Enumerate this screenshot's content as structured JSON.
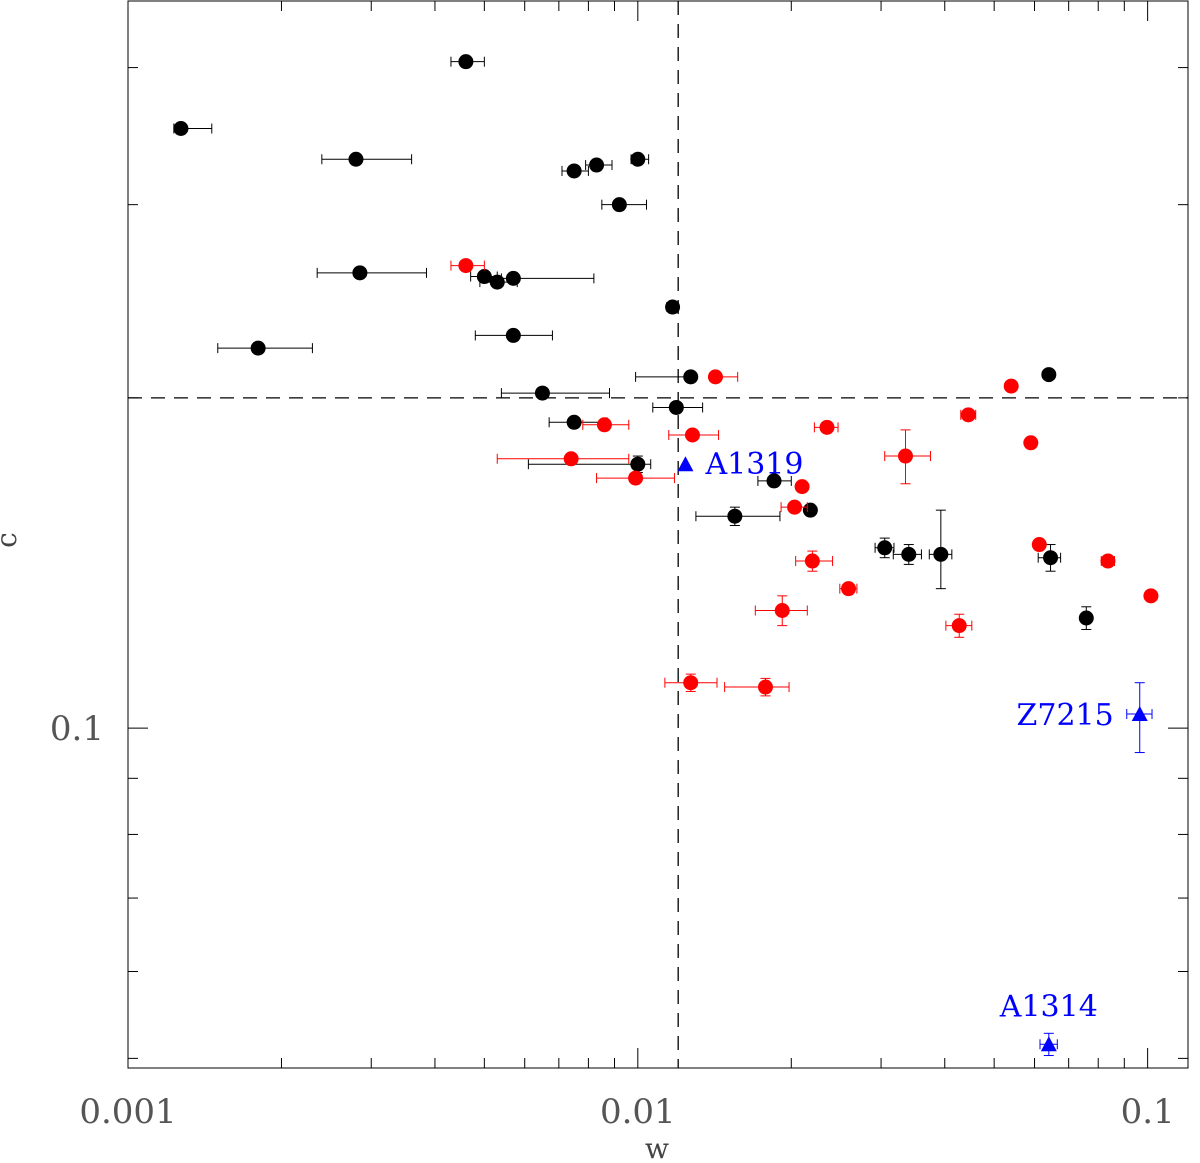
{
  "chart_data": {
    "type": "scatter",
    "title": "",
    "xlabel": "w",
    "ylabel": "c",
    "xscale": "log",
    "yscale": "log",
    "xlim": [
      0.001,
      0.12
    ],
    "ylim": [
      0.049,
      0.46
    ],
    "x_major_ticks": [
      {
        "value": 0.001,
        "label": "0.001"
      },
      {
        "value": 0.01,
        "label": "0.01"
      },
      {
        "value": 0.1,
        "label": "0.1"
      }
    ],
    "y_major_ticks": [
      {
        "value": 0.1,
        "label": "0.1"
      }
    ],
    "reference_lines": {
      "x": 0.012,
      "y": 0.2
    },
    "colors": {
      "black_series": "#000000",
      "red_series": "#ff0000",
      "blue_series": "#0000ff",
      "axis": "#000000"
    },
    "series": [
      {
        "name": "black",
        "marker": "circle",
        "color": "#000000",
        "points": [
          {
            "x": 0.00127,
            "y": 0.352,
            "xerr": [
              4e-05,
              0.00019
            ],
            "yerr": [
              0.0,
              0.0
            ]
          },
          {
            "x": 0.0046,
            "y": 0.405,
            "xerr": [
              0.0003,
              0.0004
            ],
            "yerr": [
              0.0,
              0.0
            ]
          },
          {
            "x": 0.0028,
            "y": 0.33,
            "xerr": [
              0.0004,
              0.0008
            ],
            "yerr": [
              0.0,
              0.0
            ]
          },
          {
            "x": 0.0075,
            "y": 0.322,
            "xerr": [
              0.0004,
              0.0005
            ],
            "yerr": [
              0.0,
              0.0
            ]
          },
          {
            "x": 0.0083,
            "y": 0.326,
            "xerr": [
              0.0004,
              0.0006
            ],
            "yerr": [
              0.0,
              0.0
            ]
          },
          {
            "x": 0.01,
            "y": 0.33,
            "xerr": [
              0.0003,
              0.0005
            ],
            "yerr": [
              0.0,
              0.0
            ]
          },
          {
            "x": 0.0092,
            "y": 0.3,
            "xerr": [
              0.0007,
              0.0012
            ],
            "yerr": [
              0.0,
              0.0
            ]
          },
          {
            "x": 0.00285,
            "y": 0.26,
            "xerr": [
              0.0005,
              0.001
            ],
            "yerr": [
              0.0,
              0.0
            ]
          },
          {
            "x": 0.005,
            "y": 0.258,
            "xerr": [
              0.0003,
              0.0003
            ],
            "yerr": [
              0.0,
              0.0
            ]
          },
          {
            "x": 0.0053,
            "y": 0.255,
            "xerr": [
              0.0004,
              0.0005
            ],
            "yerr": [
              0.0,
              0.0
            ]
          },
          {
            "x": 0.0057,
            "y": 0.257,
            "xerr": [
              0.0003,
              0.0025
            ],
            "yerr": [
              0.0,
              0.0
            ]
          },
          {
            "x": 0.0117,
            "y": 0.242,
            "xerr": [
              0.0003,
              0.0003
            ],
            "yerr": [
              0.0,
              0.0
            ]
          },
          {
            "x": 0.0057,
            "y": 0.228,
            "xerr": [
              0.0009,
              0.0011
            ],
            "yerr": [
              0.0,
              0.0
            ]
          },
          {
            "x": 0.0018,
            "y": 0.222,
            "xerr": [
              0.0003,
              0.0005
            ],
            "yerr": [
              0.0,
              0.0
            ]
          },
          {
            "x": 0.0127,
            "y": 0.209,
            "xerr": [
              0.0028,
              0.0003
            ],
            "yerr": [
              0.002,
              0.002
            ]
          },
          {
            "x": 0.064,
            "y": 0.21,
            "xerr": [
              0.0,
              0.0
            ],
            "yerr": [
              0.0,
              0.0
            ]
          },
          {
            "x": 0.0065,
            "y": 0.202,
            "xerr": [
              0.0011,
              0.0023
            ],
            "yerr": [
              0.0,
              0.0
            ]
          },
          {
            "x": 0.0119,
            "y": 0.196,
            "xerr": [
              0.0012,
              0.0015
            ],
            "yerr": [
              0.001,
              0.001
            ]
          },
          {
            "x": 0.0075,
            "y": 0.19,
            "xerr": [
              0.0008,
              0.0012
            ],
            "yerr": [
              0.0,
              0.0
            ]
          },
          {
            "x": 0.01,
            "y": 0.174,
            "xerr": [
              0.0039,
              0.0006
            ],
            "yerr": [
              0.003,
              0.003
            ]
          },
          {
            "x": 0.0185,
            "y": 0.168,
            "xerr": [
              0.0013,
              0.0015
            ],
            "yerr": [
              0.0,
              0.0
            ]
          },
          {
            "x": 0.0155,
            "y": 0.156,
            "xerr": [
              0.0025,
              0.0035
            ],
            "yerr": [
              0.003,
              0.003
            ]
          },
          {
            "x": 0.0218,
            "y": 0.158,
            "xerr": [
              0.0003,
              0.0003
            ],
            "yerr": [
              0.0,
              0.0
            ]
          },
          {
            "x": 0.0305,
            "y": 0.146,
            "xerr": [
              0.0013,
              0.0013
            ],
            "yerr": [
              0.003,
              0.003
            ]
          },
          {
            "x": 0.034,
            "y": 0.144,
            "xerr": [
              0.0023,
              0.002
            ],
            "yerr": [
              0.003,
              0.003
            ]
          },
          {
            "x": 0.0393,
            "y": 0.144,
            "xerr": [
              0.002,
              0.002
            ],
            "yerr": [
              0.01,
              0.014
            ]
          },
          {
            "x": 0.0645,
            "y": 0.143,
            "xerr": [
              0.0035,
              0.003
            ],
            "yerr": [
              0.004,
              0.004
            ]
          },
          {
            "x": 0.0758,
            "y": 0.126,
            "xerr": [
              0.0,
              0.0
            ],
            "yerr": [
              0.003,
              0.003
            ]
          }
        ]
      },
      {
        "name": "red",
        "marker": "circle",
        "color": "#ff0000",
        "points": [
          {
            "x": 0.0046,
            "y": 0.264,
            "xerr": [
              0.0003,
              0.0004
            ],
            "yerr": [
              0.0,
              0.0
            ]
          },
          {
            "x": 0.0142,
            "y": 0.209,
            "xerr": [
              0.0,
              0.0015
            ],
            "yerr": [
              0.0,
              0.0
            ]
          },
          {
            "x": 0.054,
            "y": 0.205,
            "xerr": [
              0.0,
              0.0
            ],
            "yerr": [
              0.0,
              0.0
            ]
          },
          {
            "x": 0.0445,
            "y": 0.193,
            "xerr": [
              0.0015,
              0.0015
            ],
            "yerr": [
              0.0,
              0.0
            ]
          },
          {
            "x": 0.0086,
            "y": 0.189,
            "xerr": [
              0.0008,
              0.001
            ],
            "yerr": [
              0.0,
              0.0
            ]
          },
          {
            "x": 0.0235,
            "y": 0.188,
            "xerr": [
              0.0013,
              0.0012
            ],
            "yerr": [
              0.0,
              0.0
            ]
          },
          {
            "x": 0.0128,
            "y": 0.185,
            "xerr": [
              0.0013,
              0.0016
            ],
            "yerr": [
              0.0,
              0.0
            ]
          },
          {
            "x": 0.059,
            "y": 0.182,
            "xerr": [
              0.0,
              0.0
            ],
            "yerr": [
              0.0,
              0.0
            ]
          },
          {
            "x": 0.0335,
            "y": 0.177,
            "xerr": [
              0.003,
              0.004
            ],
            "yerr": [
              0.01,
              0.01
            ]
          },
          {
            "x": 0.0074,
            "y": 0.176,
            "xerr": [
              0.0021,
              0.0022
            ],
            "yerr": [
              0.0,
              0.0
            ]
          },
          {
            "x": 0.0099,
            "y": 0.169,
            "xerr": [
              0.0016,
              0.0019
            ],
            "yerr": [
              0.0,
              0.0
            ]
          },
          {
            "x": 0.021,
            "y": 0.166,
            "xerr": [
              0.0,
              0.0
            ],
            "yerr": [
              0.0,
              0.0
            ]
          },
          {
            "x": 0.0203,
            "y": 0.159,
            "xerr": [
              0.0012,
              0.0012
            ],
            "yerr": [
              0.0,
              0.0
            ]
          },
          {
            "x": 0.0613,
            "y": 0.147,
            "xerr": [
              0.0,
              0.0
            ],
            "yerr": [
              0.0,
              0.0
            ]
          },
          {
            "x": 0.022,
            "y": 0.142,
            "xerr": [
              0.0016,
              0.0021
            ],
            "yerr": [
              0.003,
              0.003
            ]
          },
          {
            "x": 0.0836,
            "y": 0.142,
            "xerr": [
              0.0025,
              0.0025
            ],
            "yerr": [
              0.0,
              0.0
            ]
          },
          {
            "x": 0.0259,
            "y": 0.134,
            "xerr": [
              0.001,
              0.001
            ],
            "yerr": [
              0.0,
              0.0
            ]
          },
          {
            "x": 0.1015,
            "y": 0.132,
            "xerr": [
              0.0,
              0.0
            ],
            "yerr": [
              0.0,
              0.0
            ]
          },
          {
            "x": 0.0192,
            "y": 0.128,
            "xerr": [
              0.0022,
              0.0023
            ],
            "yerr": [
              0.004,
              0.004
            ]
          },
          {
            "x": 0.0427,
            "y": 0.124,
            "xerr": [
              0.0025,
              0.0025
            ],
            "yerr": [
              0.003,
              0.003
            ]
          },
          {
            "x": 0.0127,
            "y": 0.11,
            "xerr": [
              0.0014,
              0.0016
            ],
            "yerr": [
              0.002,
              0.002
            ]
          },
          {
            "x": 0.0178,
            "y": 0.109,
            "xerr": [
              0.003,
              0.002
            ],
            "yerr": [
              0.002,
              0.002
            ]
          }
        ]
      },
      {
        "name": "blue",
        "marker": "triangle",
        "color": "#0000ff",
        "points": [
          {
            "x": 0.0124,
            "y": 0.174,
            "xerr": [
              0.0,
              0.0
            ],
            "yerr": [
              0.0,
              0.0
            ],
            "label": "A1319",
            "label_side": "right"
          },
          {
            "x": 0.0965,
            "y": 0.103,
            "xerr": [
              0.0055,
              0.0055
            ],
            "yerr": [
              0.008,
              0.007
            ],
            "label": "Z7215",
            "label_side": "left"
          },
          {
            "x": 0.064,
            "y": 0.0515,
            "xerr": [
              0.0025,
              0.0025
            ],
            "yerr": [
              0.0012,
              0.0012
            ],
            "label": "A1314",
            "label_side": "above"
          }
        ]
      }
    ]
  }
}
